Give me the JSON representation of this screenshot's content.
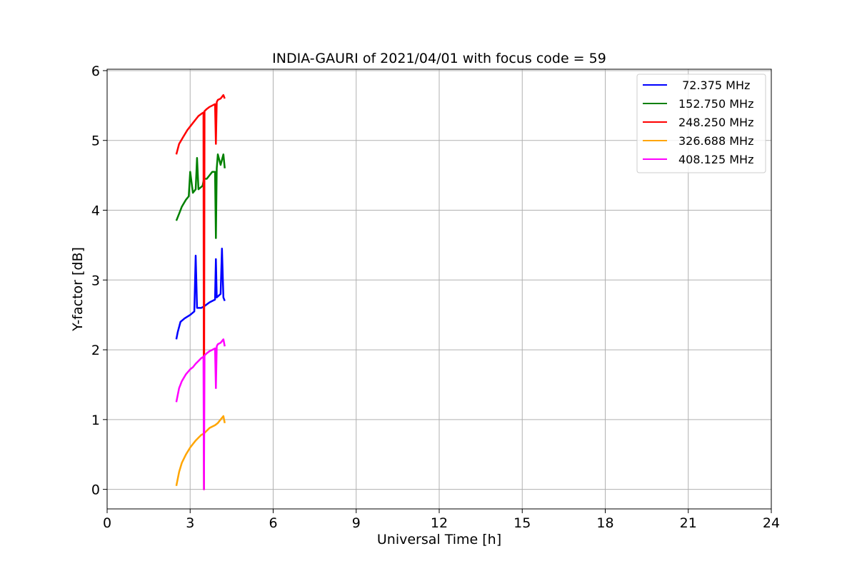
{
  "chart_data": {
    "type": "line",
    "title": "INDIA-GAURI of 2021/04/01 with focus code = 59",
    "xlabel": "Universal Time [h]",
    "ylabel": "Y-factor [dB]",
    "xlim": [
      0,
      24
    ],
    "ylim": [
      -0.28,
      6.02
    ],
    "xticks": [
      0,
      3,
      6,
      9,
      12,
      15,
      18,
      21,
      24
    ],
    "yticks": [
      0,
      1,
      2,
      3,
      4,
      5,
      6
    ],
    "grid": true,
    "legend_position": "top-right",
    "series": [
      {
        "name": " 72.375 MHz",
        "color": "#0000ff",
        "x": [
          2.5,
          2.55,
          2.65,
          2.8,
          3.0,
          3.15,
          3.2,
          3.25,
          3.4,
          3.5,
          3.6,
          3.7,
          3.8,
          3.9,
          3.93,
          3.96,
          4.1,
          4.15,
          4.2,
          4.25
        ],
        "y": [
          2.15,
          2.25,
          2.4,
          2.45,
          2.5,
          2.55,
          3.35,
          2.6,
          2.6,
          2.62,
          2.65,
          2.68,
          2.7,
          2.72,
          3.3,
          2.75,
          2.8,
          3.45,
          2.75,
          2.7
        ]
      },
      {
        "name": "152.750 MHz",
        "color": "#008000",
        "x": [
          2.5,
          2.6,
          2.7,
          2.85,
          2.95,
          3.0,
          3.1,
          3.2,
          3.25,
          3.3,
          3.45,
          3.5,
          3.6,
          3.7,
          3.8,
          3.9,
          3.93,
          3.96,
          4.0,
          4.1,
          4.2,
          4.25
        ],
        "y": [
          3.85,
          3.95,
          4.05,
          4.15,
          4.2,
          4.55,
          4.25,
          4.3,
          4.75,
          4.3,
          4.35,
          4.45,
          4.45,
          4.5,
          4.55,
          4.55,
          3.6,
          4.6,
          4.8,
          4.65,
          4.8,
          4.6
        ]
      },
      {
        "name": "248.250 MHz",
        "color": "#ff0000",
        "x": [
          2.5,
          2.6,
          2.75,
          2.9,
          3.0,
          3.1,
          3.2,
          3.3,
          3.4,
          3.48,
          3.5,
          3.52,
          3.6,
          3.7,
          3.8,
          3.9,
          3.93,
          3.96,
          4.0,
          4.1,
          4.2,
          4.25
        ],
        "y": [
          4.8,
          4.95,
          5.05,
          5.15,
          5.2,
          5.25,
          5.3,
          5.35,
          5.38,
          5.4,
          0.0,
          5.42,
          5.45,
          5.48,
          5.5,
          5.52,
          4.95,
          5.55,
          5.58,
          5.6,
          5.65,
          5.6
        ]
      },
      {
        "name": "326.688 MHz",
        "color": "#ffa500",
        "x": [
          2.5,
          2.6,
          2.7,
          2.85,
          3.0,
          3.1,
          3.2,
          3.3,
          3.4,
          3.5,
          3.6,
          3.7,
          3.8,
          3.9,
          4.0,
          4.1,
          4.2,
          4.25
        ],
        "y": [
          0.05,
          0.25,
          0.38,
          0.5,
          0.6,
          0.65,
          0.7,
          0.74,
          0.78,
          0.8,
          0.84,
          0.88,
          0.9,
          0.92,
          0.95,
          1.0,
          1.05,
          0.95
        ]
      },
      {
        "name": "408.125 MHz",
        "color": "#ff00ff",
        "x": [
          2.5,
          2.6,
          2.7,
          2.85,
          3.0,
          3.1,
          3.2,
          3.3,
          3.4,
          3.48,
          3.5,
          3.52,
          3.6,
          3.7,
          3.8,
          3.9,
          3.93,
          3.96,
          4.0,
          4.1,
          4.2,
          4.25
        ],
        "y": [
          1.25,
          1.45,
          1.55,
          1.65,
          1.72,
          1.75,
          1.8,
          1.84,
          1.88,
          1.9,
          0.0,
          1.92,
          1.95,
          1.98,
          2.0,
          2.02,
          1.45,
          2.05,
          2.08,
          2.1,
          2.15,
          2.05
        ]
      }
    ]
  }
}
